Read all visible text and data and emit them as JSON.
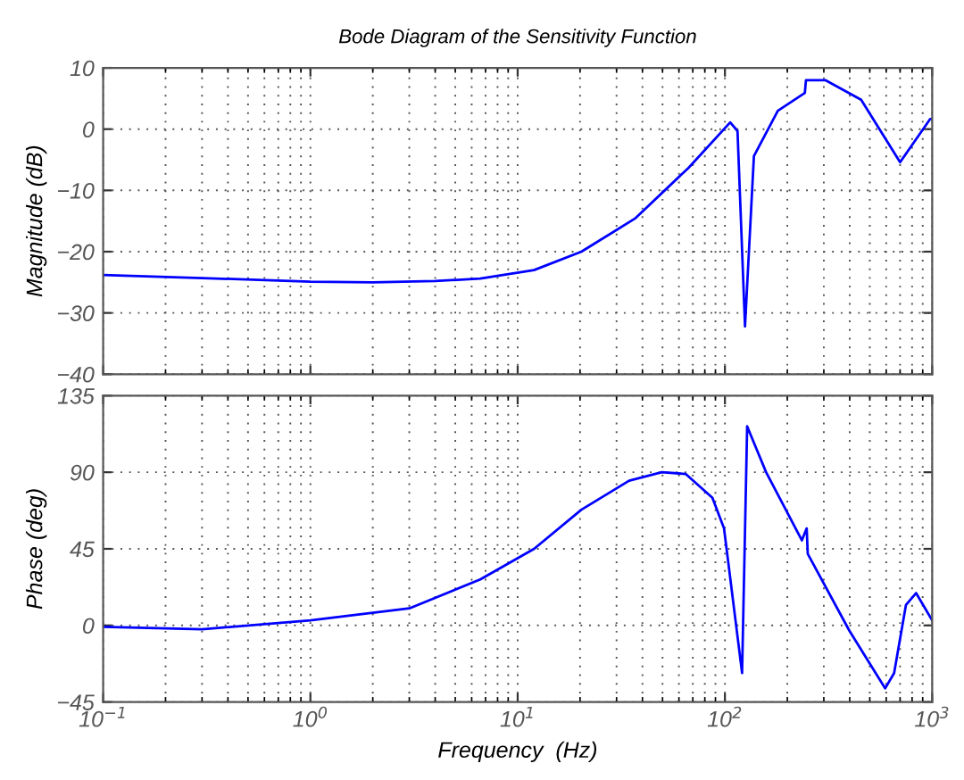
{
  "chart_data": [
    {
      "type": "line",
      "title": "Bode Diagram of the Sensitivity Function",
      "ylabel": "Magnitude (dB)",
      "log": "x",
      "grid": true,
      "tick_labels": "y",
      "xlim": [
        0.1,
        1000
      ],
      "ylim": [
        -40,
        10
      ],
      "yticks": [
        -40,
        -30,
        -20,
        -10,
        0,
        10
      ],
      "series": [
        {
          "color": "#0000ff",
          "x": [
            0.1,
            0.3,
            1,
            2,
            4,
            6.6,
            12,
            20.3,
            36.8,
            66.8,
            106,
            115,
            125,
            138,
            180,
            243,
            246,
            305,
            454,
            700,
            975,
            1000
          ],
          "values": [
            -23.8,
            -24.3,
            -24.9,
            -25,
            -24.8,
            -24.4,
            -23,
            -20,
            -14.6,
            -6.3,
            1.1,
            -0.3,
            -32.2,
            -4.4,
            3,
            5.9,
            8,
            8,
            4.8,
            -5.4,
            1.6,
            1.7
          ]
        }
      ]
    },
    {
      "type": "line",
      "xlabel": "Frequency  (Hz)",
      "ylabel": "Phase (deg)",
      "log": "x",
      "grid": true,
      "xlim": [
        0.1,
        1000
      ],
      "ylim": [
        -45,
        135
      ],
      "yticks": [
        -45,
        0,
        45,
        90,
        135
      ],
      "xticks": [
        {
          "value": 0.1,
          "label": "10$^{−1}$"
        },
        {
          "value": 1,
          "label": "10$^{0}$"
        },
        {
          "value": 10,
          "label": "10$^{1}$"
        },
        {
          "value": 100,
          "label": "10$^{2}$"
        },
        {
          "value": 1000,
          "label": "10$^{3}$"
        }
      ],
      "series": [
        {
          "color": "#0000ff",
          "x": [
            0.1,
            0.3,
            1,
            3,
            6.6,
            12,
            20.3,
            34.5,
            49.6,
            64.6,
            87,
            99,
            121,
            128,
            158,
            235,
            248,
            251,
            398,
            593,
            655,
            747,
            836,
            1000
          ],
          "values": [
            -0.8,
            -2.3,
            3,
            10,
            27,
            45,
            68,
            85,
            90,
            89,
            75,
            57,
            -28,
            117,
            90,
            50,
            57,
            42,
            -3,
            -37,
            -28,
            12,
            19,
            3
          ]
        }
      ]
    }
  ]
}
